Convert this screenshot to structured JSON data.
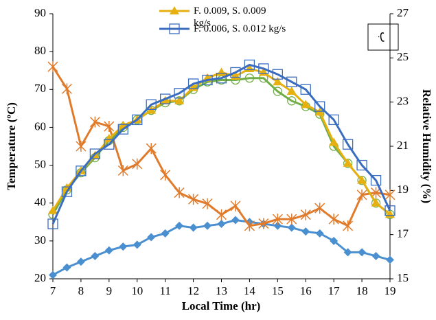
{
  "chart_data": {
    "type": "line",
    "x_label": "Local Time (hr)",
    "y_label": "Temperature (ºC)",
    "y2_label": "Relative Humidity (%)",
    "annotation": "ب",
    "x": [
      7,
      7.5,
      8,
      8.5,
      9,
      9.5,
      10,
      10.5,
      11,
      11.5,
      12,
      12.5,
      13,
      13.5,
      14,
      14.5,
      15,
      15.5,
      16,
      16.5,
      17,
      17.5,
      18,
      18.5,
      19
    ],
    "xlim": [
      7,
      19
    ],
    "xticks": [
      7,
      8,
      9,
      10,
      11,
      12,
      13,
      14,
      15,
      16,
      17,
      18,
      19
    ],
    "ylim": [
      20,
      90
    ],
    "yticks": [
      20,
      30,
      40,
      50,
      60,
      70,
      80,
      90
    ],
    "y2lim": [
      15,
      27
    ],
    "y2ticks": [
      15,
      17,
      19,
      21,
      23,
      25,
      27
    ],
    "grid": false,
    "series": [
      {
        "color": "#4a8fd0",
        "marker": "diamond",
        "values": [
          21,
          23,
          24.5,
          26,
          27.5,
          28.5,
          29,
          31,
          32,
          34,
          33.5,
          34,
          34.5,
          35.5,
          35,
          34.5,
          34,
          33.5,
          32.5,
          32,
          30,
          27,
          27,
          26,
          25
        ]
      },
      {
        "color": "#e07b2c",
        "marker": "star",
        "axis": "y2",
        "values": [
          24.6,
          23.6,
          21.0,
          22.1,
          21.9,
          19.9,
          20.2,
          20.9,
          19.7,
          18.9,
          18.6,
          18.4,
          17.9,
          18.3,
          17.4,
          17.5,
          17.7,
          17.7,
          17.9,
          18.2,
          17.7,
          17.4,
          18.8,
          18.9,
          18.8
        ]
      },
      {
        "color": "#70ad47",
        "marker": "circle",
        "values": [
          37,
          43.5,
          48,
          52,
          56.5,
          60,
          62,
          64.5,
          66.5,
          67,
          70,
          72,
          72.5,
          72.5,
          73,
          73,
          69.5,
          67,
          65.5,
          63.5,
          55,
          50.5,
          46,
          40,
          37
        ]
      },
      {
        "name": "F. 0.009, S. 0.009 kg/s",
        "color": "#e6b010",
        "marker": "triangle",
        "values": [
          38,
          44,
          48.5,
          52.5,
          57,
          60.5,
          62,
          64.5,
          67,
          67,
          70.5,
          73,
          74.5,
          73.5,
          75.5,
          74.5,
          72,
          69.5,
          66,
          64,
          56,
          50.5,
          46,
          40,
          37
        ]
      },
      {
        "name": "F. 0.006, S. 0.012 kg/s",
        "color": "#3a6cc0",
        "marker": "square",
        "values": [
          34.5,
          43,
          48.5,
          53,
          55.5,
          59.5,
          62,
          66,
          67.5,
          69,
          71.5,
          72.5,
          73,
          74.5,
          76.5,
          75.5,
          74,
          72,
          70,
          65.5,
          62,
          55.5,
          50,
          46,
          38
        ]
      }
    ]
  }
}
